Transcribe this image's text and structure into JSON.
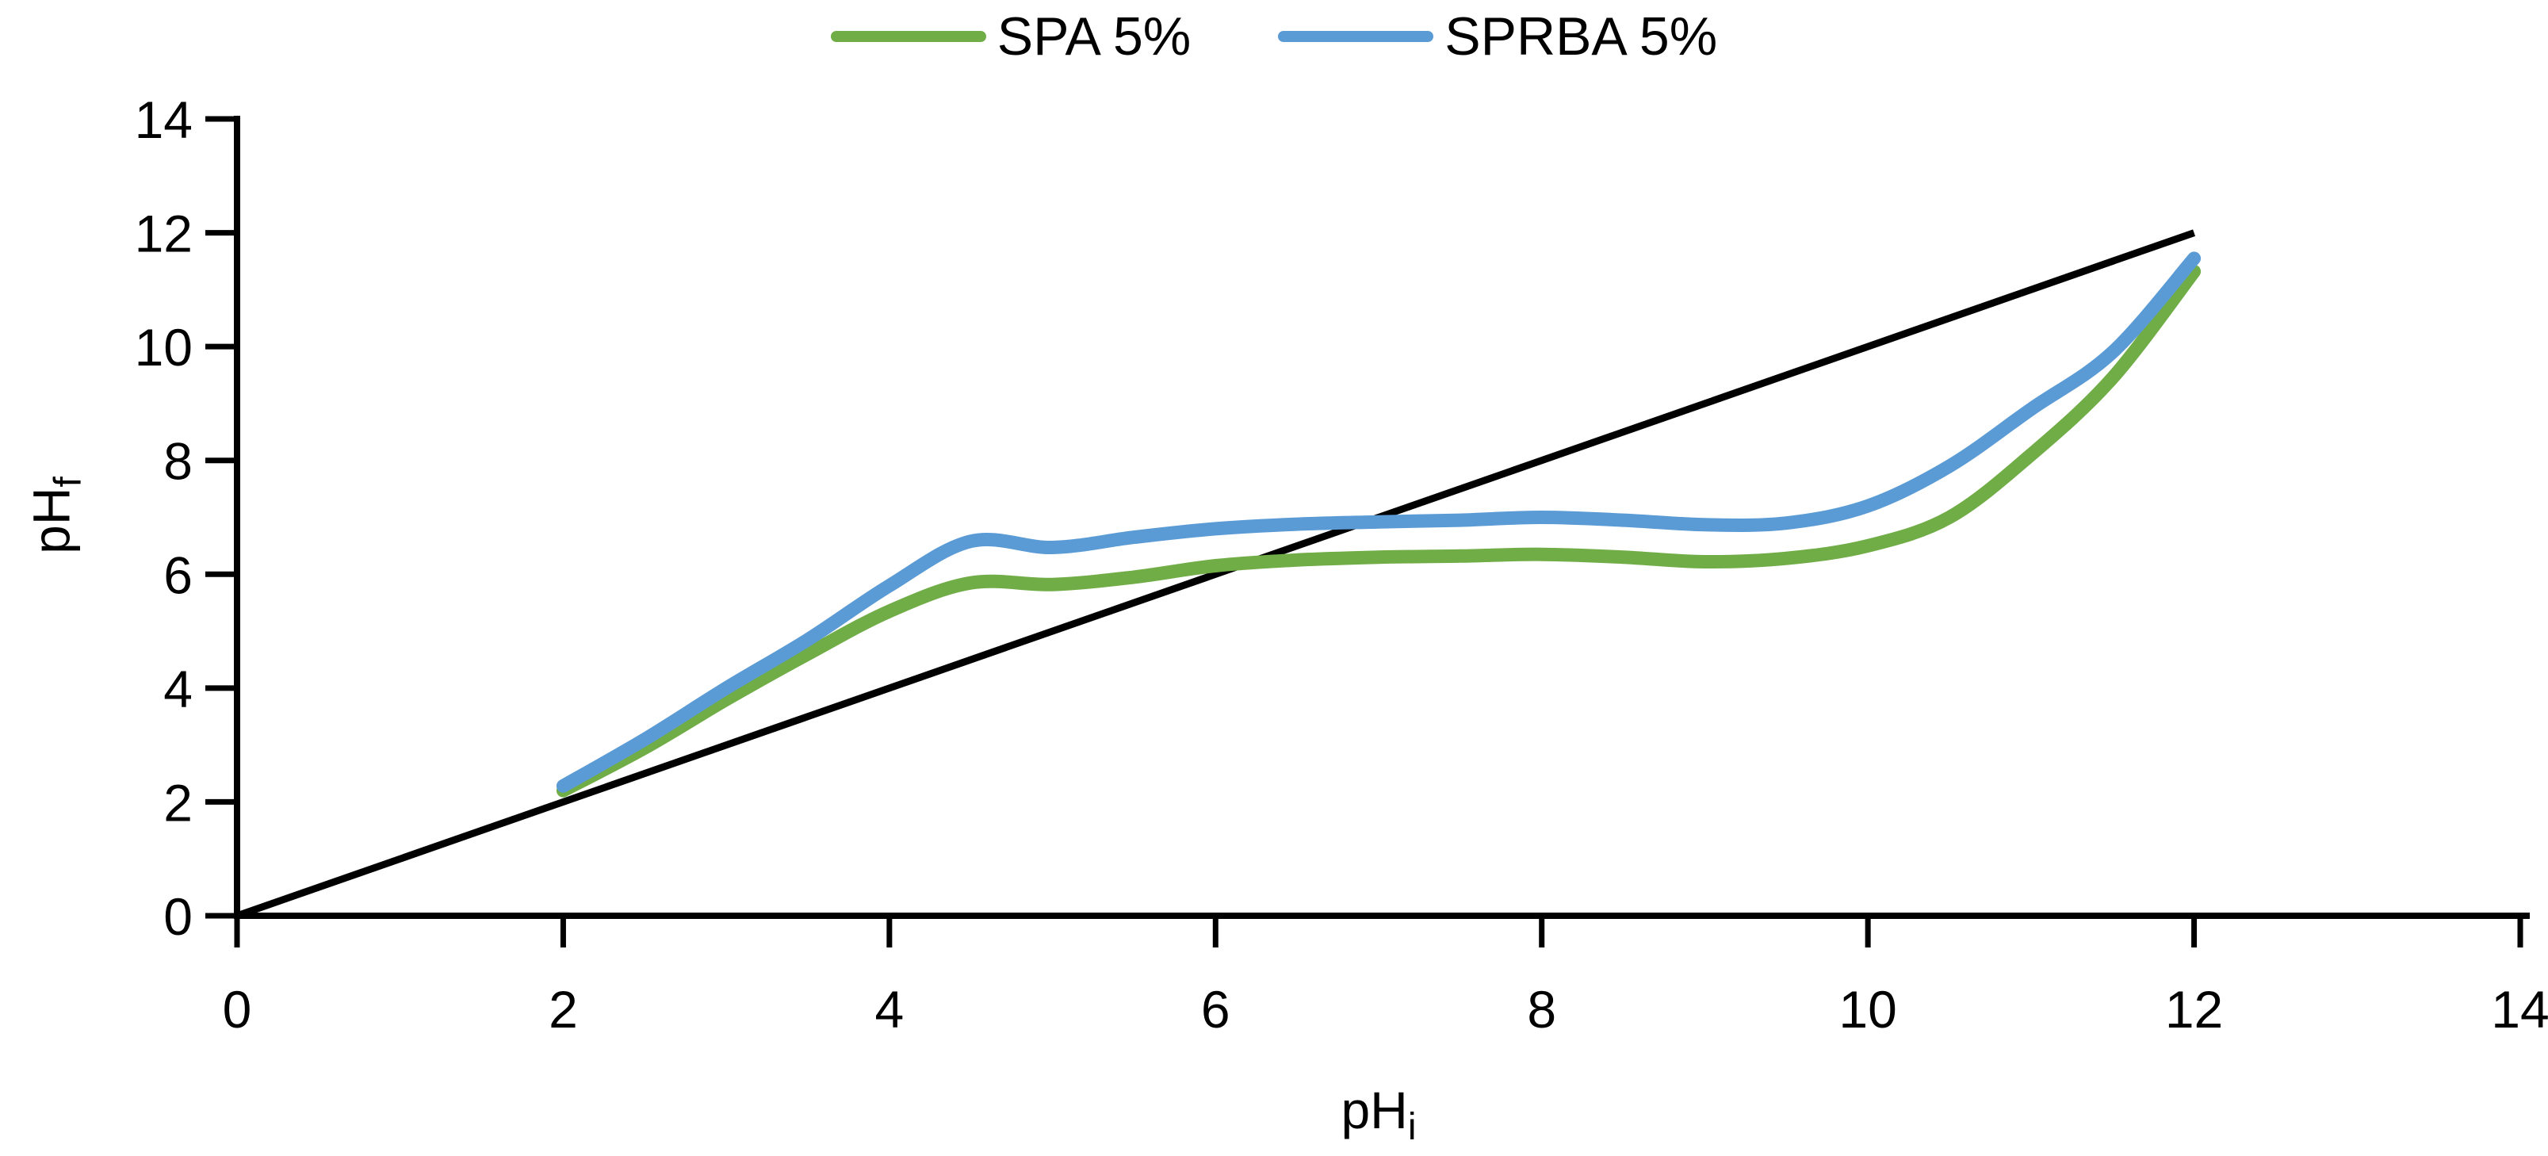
{
  "chart_data": {
    "type": "line",
    "x": [
      2,
      2.5,
      3,
      3.5,
      4,
      4.5,
      5,
      5.5,
      6,
      6.5,
      7,
      7.5,
      8,
      8.5,
      9,
      9.5,
      10,
      10.5,
      11,
      11.5,
      12
    ],
    "series": [
      {
        "name": "SPA 5%",
        "color": "#70AD47",
        "values": [
          2.2,
          2.95,
          3.8,
          4.6,
          5.35,
          5.85,
          5.82,
          5.95,
          6.15,
          6.25,
          6.3,
          6.32,
          6.35,
          6.3,
          6.22,
          6.28,
          6.5,
          7.0,
          8.1,
          9.45,
          11.32
        ]
      },
      {
        "name": "SPRBA 5%",
        "color": "#5B9BD5",
        "values": [
          2.28,
          3.1,
          4.0,
          4.85,
          5.8,
          6.58,
          6.47,
          6.65,
          6.8,
          6.88,
          6.92,
          6.95,
          7.0,
          6.95,
          6.87,
          6.9,
          7.2,
          7.9,
          8.9,
          9.9,
          11.55
        ]
      }
    ],
    "reference_line": {
      "name": "identity-diagonal",
      "color": "#000000",
      "points": [
        [
          0,
          0
        ],
        [
          12,
          12
        ]
      ]
    },
    "x_axis": {
      "min": 0,
      "max": 14,
      "ticks": [
        0,
        2,
        4,
        6,
        8,
        10,
        12,
        14
      ]
    },
    "y_axis": {
      "min": 0,
      "max": 14,
      "ticks": [
        0,
        2,
        4,
        6,
        8,
        10,
        12,
        14
      ]
    },
    "xlabel_base": "pH",
    "xlabel_sub": "i",
    "ylabel_base": "pH",
    "ylabel_sub": "f",
    "grid": false,
    "legend_position": "top-center",
    "axis_color": "#000000"
  }
}
